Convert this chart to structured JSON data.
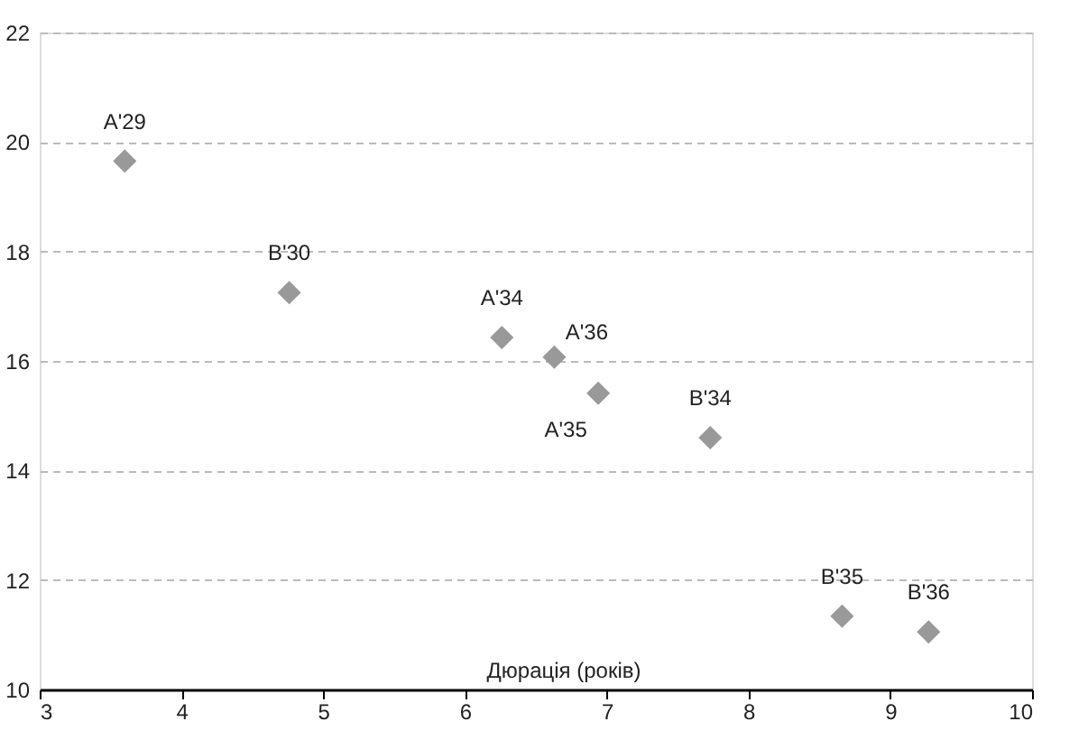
{
  "chart_data": {
    "type": "scatter",
    "xlabel": "Дюрація (років)",
    "x": [
      3.6,
      4.76,
      6.26,
      6.63,
      6.94,
      7.73,
      8.66,
      9.27
    ],
    "values": [
      19.65,
      17.25,
      16.43,
      16.07,
      15.41,
      14.6,
      11.34,
      11.05
    ],
    "color": "#999999",
    "marker": "diamond",
    "annotations": [
      {
        "text": "A'29",
        "x": 3.6,
        "y": 19.65
      },
      {
        "text": "B'30",
        "x": 4.76,
        "y": 17.25
      },
      {
        "text": "A'34",
        "x": 6.26,
        "y": 16.43
      },
      {
        "text": "A'36",
        "x": 6.63,
        "y": 16.07
      },
      {
        "text": "A'35",
        "x": 6.94,
        "y": 15.41
      },
      {
        "text": "B'34",
        "x": 7.73,
        "y": 14.6
      },
      {
        "text": "B'35",
        "x": 8.66,
        "y": 11.34
      },
      {
        "text": "B'36",
        "x": 9.27,
        "y": 11.05
      }
    ],
    "xlim": [
      3,
      10
    ],
    "xticks": [
      3,
      4,
      5,
      6,
      7,
      8,
      9,
      10
    ],
    "ylim": [
      10,
      22
    ],
    "yticks": [
      10,
      12,
      14,
      16,
      18,
      20,
      22
    ],
    "grid": "y"
  }
}
